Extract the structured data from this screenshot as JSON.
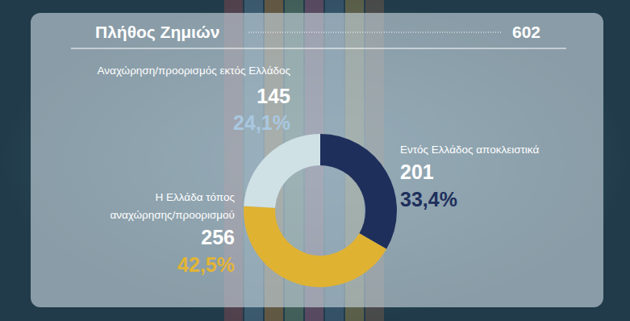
{
  "chart_data": {
    "type": "donut",
    "title": "Πλήθος Ζημιών",
    "total": 602,
    "categories": [
      "Εντός Ελλάδος αποκλειστικά",
      "Η Ελλάδα τόπος\nαναχώρησης/προορισμού",
      "Αναχώρηση/προορισμός εκτός Ελλάδος"
    ],
    "values": [
      201,
      256,
      145
    ],
    "percents": [
      33.4,
      42.5,
      24.1
    ],
    "percent_labels": [
      "33,4%",
      "42,5%",
      "24,1%"
    ],
    "colors": [
      "#1f2f5c",
      "#e0b232",
      "#cfe1e5"
    ],
    "data_labels": true
  }
}
